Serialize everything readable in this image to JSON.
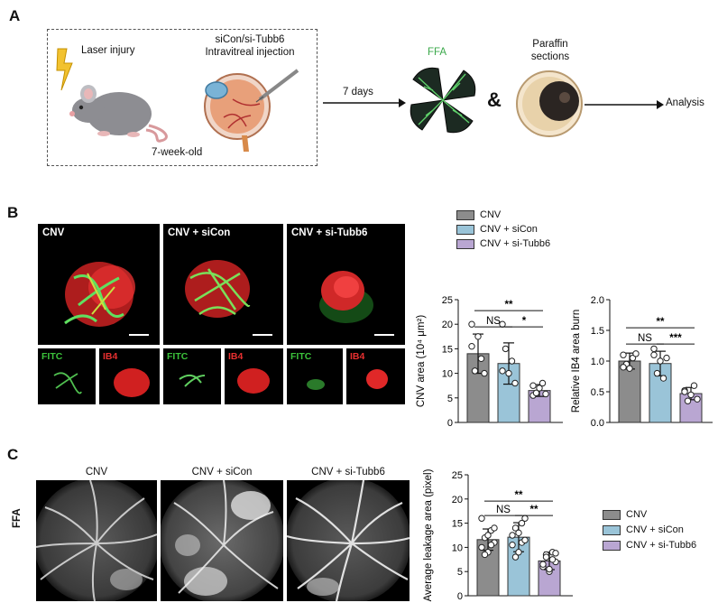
{
  "panels": {
    "a": "A",
    "b": "B",
    "c": "C"
  },
  "panel_a": {
    "laser": "Laser injury",
    "injection_line1": "siCon/si-Tubb6",
    "injection_line2": "Intravitreal injection",
    "age": "7-week-old",
    "days": "7 days",
    "ffa": "FFA",
    "amp": "&",
    "paraffin_line1": "Paraffin",
    "paraffin_line2": "sections",
    "analysis": "Analysis"
  },
  "panel_b": {
    "images": [
      "CNV",
      "CNV + siCon",
      "CNV + si-Tubb6"
    ],
    "fitc": "FITC",
    "ib4": "IB4"
  },
  "panel_c": {
    "images": [
      "CNV",
      "CNV + siCon",
      "CNV + si-Tubb6"
    ],
    "row_label": "FFA"
  },
  "legend": {
    "items": [
      "CNV",
      "CNV + siCon",
      "CNV + si-Tubb6"
    ],
    "colors": [
      "#8c8c8c",
      "#9ac4d8",
      "#b9a6d2"
    ]
  },
  "chart_data": [
    {
      "type": "bar",
      "id": "cnv-area",
      "categories": [
        "CNV",
        "CNV + siCon",
        "CNV + si-Tubb6"
      ],
      "values": [
        14.0,
        12.0,
        6.5
      ],
      "errors": [
        4.0,
        4.2,
        1.2
      ],
      "points": [
        [
          15.5,
          10.5,
          17.5,
          13,
          10,
          20
        ],
        [
          10.5,
          15,
          10,
          12.5,
          8,
          20
        ],
        [
          5.5,
          6,
          7,
          8,
          5.8,
          7.5
        ]
      ],
      "ylabel": "CNV area (10⁴ μm²)",
      "yticks": [
        "0",
        "5",
        "10",
        "15",
        "20",
        "25"
      ],
      "ylim": [
        0,
        25
      ],
      "comparisons": [
        {
          "pair": [
            0,
            1
          ],
          "label": "NS"
        },
        {
          "pair": [
            0,
            2
          ],
          "label": "**"
        },
        {
          "pair": [
            1,
            2
          ],
          "label": "*"
        }
      ]
    },
    {
      "type": "bar",
      "id": "ib4-area",
      "categories": [
        "CNV",
        "CNV + siCon",
        "CNV + si-Tubb6"
      ],
      "values": [
        1.0,
        0.96,
        0.47
      ],
      "errors": [
        0.13,
        0.2,
        0.1
      ],
      "points": [
        [
          1.1,
          0.95,
          0.88,
          1.05,
          1.12,
          0.9
        ],
        [
          1.2,
          0.8,
          1.0,
          0.72,
          1.05,
          1.1
        ],
        [
          0.52,
          0.35,
          0.45,
          0.6,
          0.38,
          0.5
        ]
      ],
      "ylabel": "Relative IB4 area burn",
      "yticks": [
        "0.0",
        "0.5",
        "1.0",
        "1.5",
        "2.0"
      ],
      "ylim": [
        0,
        2
      ],
      "comparisons": [
        {
          "pair": [
            0,
            1
          ],
          "label": "NS"
        },
        {
          "pair": [
            0,
            2
          ],
          "label": "**"
        },
        {
          "pair": [
            1,
            2
          ],
          "label": "***"
        }
      ]
    },
    {
      "type": "bar",
      "id": "leakage-area",
      "categories": [
        "CNV",
        "CNV + siCon",
        "CNV + si-Tubb6"
      ],
      "values": [
        11.6,
        12.1,
        7.2
      ],
      "errors": [
        2.2,
        3.0,
        1.8
      ],
      "points": [
        [
          10,
          12,
          9,
          13.5,
          11,
          16,
          8.5,
          12.5,
          10.5,
          14
        ],
        [
          10.5,
          14,
          9,
          11,
          16,
          12.5,
          8,
          13,
          15,
          11.5
        ],
        [
          6,
          8.5,
          5,
          9,
          7,
          6.5,
          8,
          5.5,
          7.5,
          8.8
        ]
      ],
      "ylabel": "Average leakage area (pixel)",
      "yticks": [
        "0",
        "5",
        "10",
        "15",
        "20",
        "25"
      ],
      "ylim": [
        0,
        25
      ],
      "comparisons": [
        {
          "pair": [
            0,
            1
          ],
          "label": "NS"
        },
        {
          "pair": [
            0,
            2
          ],
          "label": "**"
        },
        {
          "pair": [
            1,
            2
          ],
          "label": "**"
        }
      ]
    }
  ]
}
